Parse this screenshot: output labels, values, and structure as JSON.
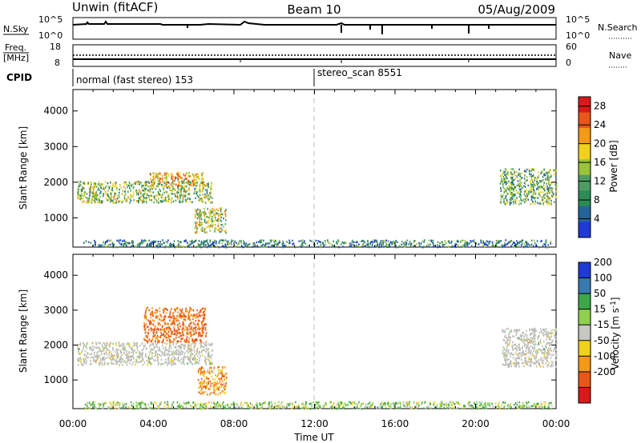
{
  "header": {
    "station": "Unwin (fitACF)",
    "beam": "Beam 10",
    "date": "05/Aug/2009"
  },
  "sky_panel": {
    "left_label": "N.Sky",
    "left_ticks": [
      "10^5",
      "10^0"
    ],
    "right_label": "N.Search",
    "right_ticks": [
      "10^5",
      "10^0"
    ]
  },
  "freq_panel": {
    "left_label_1": "Freq.",
    "left_label_2": "[MHz]",
    "left_ticks": [
      "18",
      "8"
    ],
    "right_label": "Nave",
    "right_ticks": [
      "60",
      "0"
    ]
  },
  "cpid": {
    "label": "CPID",
    "mode_1": "normal (fast stereo) 153",
    "mode_2": "stereo_scan 8551"
  },
  "colors": {
    "power_scale": [
      "#1f3ad6",
      "#24649a",
      "#2b8c55",
      "#4f9c63",
      "#9ac23a",
      "#f2d11e",
      "#f59a17",
      "#e8561a",
      "#d9191c"
    ],
    "velocity_scale": [
      "#1f3ad6",
      "#3a78b0",
      "#3aa84a",
      "#8fd14e",
      "#c8c8c2",
      "#f2d11e",
      "#f59a17",
      "#e8561a",
      "#d9191c"
    ],
    "ground_scatter": "#bdbdb8"
  },
  "chart_data": [
    {
      "type": "heatmap",
      "panel": "power",
      "ylabel": "Slant Range [km]",
      "xlabel": "Time UT",
      "x_ticks": [
        "00:00",
        "04:00",
        "08:00",
        "12:00",
        "16:00",
        "20:00",
        "00:00"
      ],
      "y_ticks": [
        1000,
        2000,
        3000,
        4000
      ],
      "xlim": [
        0,
        24
      ],
      "ylim": [
        180,
        4600
      ],
      "colorbar_label": "Power [dB]",
      "colorbar_ticks": [
        4,
        8,
        12,
        16,
        20,
        24,
        28
      ],
      "colorbar_range": [
        0,
        30
      ],
      "regions": [
        {
          "t0": 0.2,
          "t1": 6.9,
          "r0": 1450,
          "r1": 2050,
          "value": 14
        },
        {
          "t0": 3.8,
          "t1": 6.5,
          "r0": 1900,
          "r1": 2300,
          "value": 20
        },
        {
          "t0": 6.0,
          "t1": 7.6,
          "r0": 600,
          "r1": 1300,
          "value": 16
        },
        {
          "t0": 21.2,
          "t1": 24.0,
          "r0": 1400,
          "r1": 2400,
          "value": 12
        },
        {
          "t0": 0.5,
          "t1": 23.8,
          "r0": 200,
          "r1": 400,
          "value": 8
        }
      ]
    },
    {
      "type": "heatmap",
      "panel": "velocity",
      "ylabel": "Slant Range [km]",
      "xlabel": "Time UT",
      "x_ticks": [
        "00:00",
        "04:00",
        "08:00",
        "12:00",
        "16:00",
        "20:00",
        "00:00"
      ],
      "y_ticks": [
        1000,
        2000,
        3000,
        4000
      ],
      "xlim": [
        0,
        24
      ],
      "ylim": [
        180,
        4600
      ],
      "colorbar_label": "Velocity [m s^-1]",
      "colorbar_ticks": [
        200,
        100,
        50,
        15,
        -15,
        -50,
        -100,
        -200
      ],
      "regions": [
        {
          "t0": 0.2,
          "t1": 6.9,
          "r0": 1450,
          "r1": 2100,
          "value": 0,
          "ground_scatter": true
        },
        {
          "t0": 3.5,
          "t1": 6.6,
          "r0": 2100,
          "r1": 3100,
          "value": -120
        },
        {
          "t0": 6.2,
          "t1": 7.6,
          "r0": 600,
          "r1": 1400,
          "value": -80
        },
        {
          "t0": 21.3,
          "t1": 24.0,
          "r0": 1400,
          "r1": 2500,
          "value": 0,
          "ground_scatter": true
        },
        {
          "t0": 0.5,
          "t1": 23.8,
          "r0": 200,
          "r1": 400,
          "value": 30
        }
      ]
    }
  ]
}
